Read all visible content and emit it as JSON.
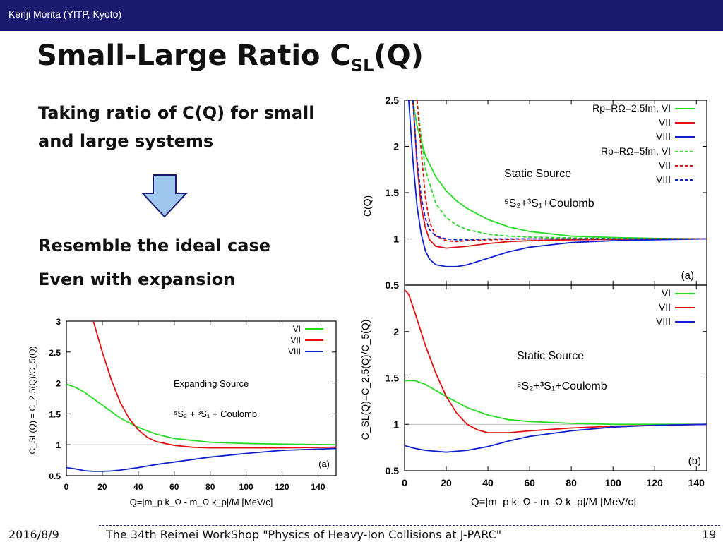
{
  "header": {
    "author": "Kenji Morita (YITP, Kyoto)"
  },
  "slide": {
    "title_main": "Small-Large Ratio C",
    "title_sub": "SL",
    "title_tail": "(Q)",
    "bullets": [
      "Taking ratio of C(Q) for small",
      "and large systems",
      "Resemble the ideal case",
      "Even with expansion"
    ]
  },
  "colors": {
    "green": "#22dd22",
    "red": "#e01010",
    "blue": "#1020d0",
    "header_bg": "#1a1a6e"
  },
  "footer": {
    "date": "2016/8/9",
    "event": "The 34th Reimei WorkShop \"Physics of Heavy-Ion Collisions at J-PARC\"",
    "page": "19"
  },
  "chart_data": [
    {
      "type": "line",
      "panel": "(a)",
      "xlim": [
        0,
        145
      ],
      "ylim": [
        0.5,
        2.5
      ],
      "yticks": [
        "0.5",
        "1",
        "1.5",
        "2",
        "2.5"
      ],
      "ylabel": "C(Q)",
      "annotations": [
        "Static Source",
        "⁵S₂+³S₁+Coulomb"
      ],
      "legend": [
        "Rp=RΩ=2.5fm, VI",
        "VII",
        "VIII",
        "Rp=RΩ=5fm, VI",
        "VII",
        "VIII"
      ],
      "series": [
        {
          "name": "Rp=RΩ=2.5fm, VI",
          "color": "green",
          "dash": false,
          "x": [
            4,
            6,
            10,
            15,
            20,
            25,
            30,
            40,
            50,
            60,
            80,
            100,
            120,
            145
          ],
          "y": [
            2.5,
            2.22,
            1.9,
            1.67,
            1.52,
            1.41,
            1.33,
            1.21,
            1.13,
            1.08,
            1.03,
            1.015,
            1.005,
            1.0
          ]
        },
        {
          "name": "VII",
          "color": "red",
          "dash": false,
          "x": [
            4,
            6,
            8,
            10,
            12,
            15,
            20,
            30,
            40,
            50,
            60,
            80,
            100,
            120,
            145
          ],
          "y": [
            2.5,
            1.8,
            1.35,
            1.12,
            0.99,
            0.92,
            0.9,
            0.92,
            0.95,
            0.97,
            0.98,
            0.99,
            0.995,
            1.0,
            1.0
          ]
        },
        {
          "name": "VIII",
          "color": "blue",
          "dash": false,
          "x": [
            2,
            4,
            6,
            8,
            10,
            12,
            15,
            20,
            25,
            30,
            40,
            50,
            60,
            80,
            100,
            120,
            145
          ],
          "y": [
            2.5,
            1.85,
            1.35,
            1.05,
            0.87,
            0.78,
            0.72,
            0.7,
            0.7,
            0.72,
            0.79,
            0.86,
            0.91,
            0.96,
            0.98,
            0.99,
            1.0
          ]
        },
        {
          "name": "Rp=RΩ=5fm, VI",
          "color": "green",
          "dash": true,
          "x": [
            6,
            8,
            10,
            15,
            20,
            25,
            30,
            40,
            50,
            60,
            80,
            100,
            145
          ],
          "y": [
            2.5,
            2.1,
            1.75,
            1.38,
            1.23,
            1.15,
            1.1,
            1.05,
            1.03,
            1.02,
            1.01,
            1.005,
            1.0
          ]
        },
        {
          "name": "VII",
          "color": "red",
          "dash": true,
          "x": [
            6,
            8,
            10,
            12,
            15,
            20,
            25,
            30,
            40,
            60,
            80,
            145
          ],
          "y": [
            2.5,
            1.95,
            1.45,
            1.18,
            1.03,
            0.98,
            0.97,
            0.98,
            0.99,
            1.0,
            1.0,
            1.0
          ]
        },
        {
          "name": "VIII",
          "color": "blue",
          "dash": true,
          "x": [
            4,
            6,
            8,
            10,
            12,
            15,
            20,
            25,
            30,
            40,
            60,
            145
          ],
          "y": [
            2.5,
            1.85,
            1.45,
            1.22,
            1.1,
            1.03,
            1.0,
            0.99,
            0.99,
            1.0,
            1.0,
            1.0
          ]
        }
      ]
    },
    {
      "type": "line",
      "panel": "(b)",
      "xlim": [
        0,
        145
      ],
      "ylim": [
        0.5,
        2.5
      ],
      "xticks": [
        "0",
        "20",
        "40",
        "60",
        "80",
        "100",
        "120",
        "140"
      ],
      "yticks": [
        "0.5",
        "1",
        "1.5",
        "2"
      ],
      "xlabel": "Q=|m_p k_Ω - m_Ω k_p|/M [MeV/c]",
      "ylabel": "C_SL(Q)=C_2.5(Q)/C_5(Q)",
      "annotations": [
        "Static Source",
        "⁵S₂+³S₁+Coulomb"
      ],
      "legend": [
        "VI",
        "VII",
        "VIII"
      ],
      "series": [
        {
          "name": "VI",
          "color": "green",
          "x": [
            0,
            5,
            10,
            20,
            30,
            40,
            50,
            60,
            80,
            100,
            120,
            145
          ],
          "y": [
            1.47,
            1.47,
            1.43,
            1.3,
            1.18,
            1.1,
            1.05,
            1.03,
            1.01,
            1.0,
            1.0,
            1.0
          ]
        },
        {
          "name": "VII",
          "color": "red",
          "x": [
            0,
            2,
            5,
            10,
            15,
            20,
            25,
            30,
            35,
            40,
            50,
            60,
            80,
            100,
            145
          ],
          "y": [
            2.45,
            2.4,
            2.2,
            1.85,
            1.55,
            1.3,
            1.12,
            1.0,
            0.94,
            0.91,
            0.91,
            0.93,
            0.96,
            0.98,
            1.0
          ]
        },
        {
          "name": "VIII",
          "color": "blue",
          "x": [
            0,
            5,
            10,
            15,
            20,
            25,
            30,
            40,
            50,
            60,
            80,
            100,
            120,
            145
          ],
          "y": [
            0.77,
            0.74,
            0.72,
            0.71,
            0.7,
            0.71,
            0.72,
            0.76,
            0.82,
            0.87,
            0.93,
            0.97,
            0.99,
            1.0
          ]
        }
      ]
    },
    {
      "type": "line",
      "panel": "(a)",
      "xlim": [
        0,
        150
      ],
      "ylim": [
        0.5,
        3
      ],
      "xticks": [
        "0",
        "20",
        "40",
        "60",
        "80",
        "100",
        "120",
        "140"
      ],
      "yticks": [
        "0.5",
        "1",
        "1.5",
        "2",
        "2.5",
        "3"
      ],
      "xlabel": "Q=|m_p k_Ω - m_Ω k_p|/M [MeV/c]",
      "ylabel": "C_SL(Q) = C_2.5(Q)/C_5(Q)",
      "annotations": [
        "Expanding Source",
        "⁵S₂ + ³S₁ + Coulomb"
      ],
      "legend": [
        "VI",
        "VII",
        "VIII"
      ],
      "series": [
        {
          "name": "VI",
          "color": "green",
          "x": [
            0,
            5,
            10,
            20,
            30,
            40,
            50,
            60,
            80,
            100,
            120,
            150
          ],
          "y": [
            1.98,
            1.93,
            1.85,
            1.64,
            1.43,
            1.28,
            1.17,
            1.1,
            1.04,
            1.02,
            1.01,
            1.0
          ]
        },
        {
          "name": "VII",
          "color": "red",
          "x": [
            15,
            20,
            25,
            30,
            35,
            40,
            45,
            50,
            60,
            70,
            80,
            100,
            120,
            150
          ],
          "y": [
            3.0,
            2.5,
            2.05,
            1.68,
            1.42,
            1.24,
            1.12,
            1.05,
            0.99,
            0.96,
            0.95,
            0.95,
            0.95,
            0.96
          ]
        },
        {
          "name": "VIII",
          "color": "blue",
          "x": [
            0,
            5,
            10,
            15,
            20,
            25,
            30,
            40,
            50,
            60,
            80,
            100,
            120,
            150
          ],
          "y": [
            0.63,
            0.61,
            0.58,
            0.57,
            0.57,
            0.575,
            0.59,
            0.63,
            0.68,
            0.72,
            0.8,
            0.86,
            0.91,
            0.94
          ]
        }
      ]
    }
  ]
}
